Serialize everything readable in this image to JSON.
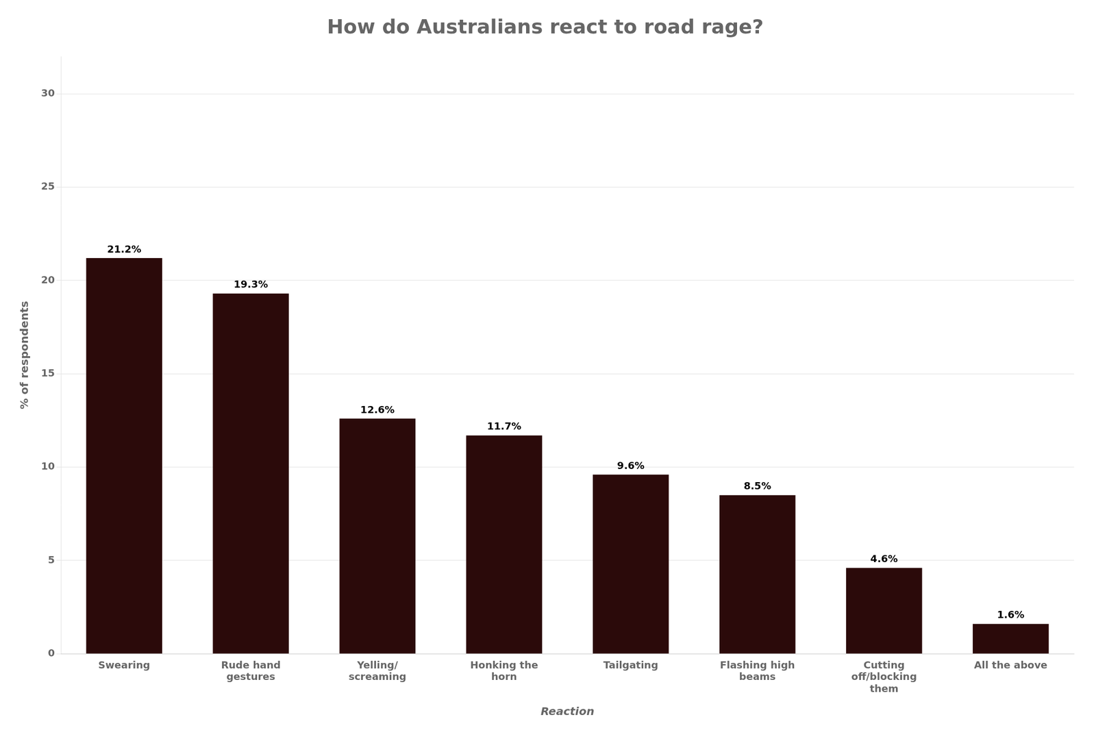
{
  "chart_data": {
    "type": "bar",
    "title": "How do Australians react to road rage?",
    "categories": [
      "Swearing",
      "Rude hand\ngestures",
      "Yelling/\nscreaming",
      "Honking the\nhorn",
      "Tailgating",
      "Flashing high\nbeams",
      "Cutting\noff/blocking\nthem",
      "All the above"
    ],
    "values": [
      21.2,
      19.3,
      12.6,
      11.7,
      9.6,
      8.5,
      4.6,
      1.6
    ],
    "value_labels": [
      "21.2%",
      "19.3%",
      "12.6%",
      "11.7%",
      "9.6%",
      "8.5%",
      "4.6%",
      "1.6%"
    ],
    "data_labels": true,
    "color": "#2b0a0a",
    "xlabel": "Reaction",
    "ylabel": "% of respondents",
    "ylim": [
      0,
      32
    ],
    "yticks": [
      0,
      5,
      10,
      15,
      20,
      25,
      30
    ],
    "grid": true
  }
}
